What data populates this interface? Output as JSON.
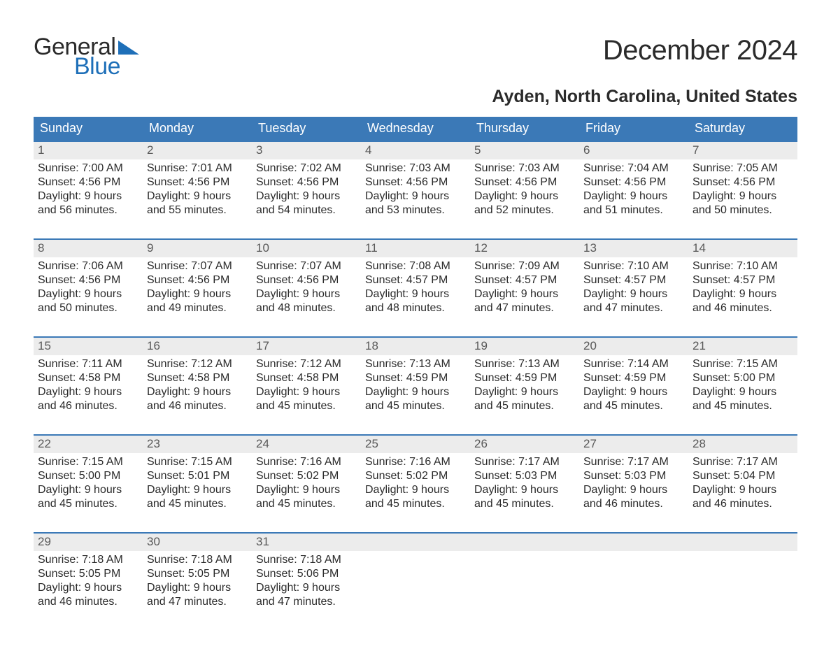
{
  "logo": {
    "word1": "General",
    "word2": "Blue",
    "word2_color": "#1e6fb8",
    "tri_color": "#1e6fb8"
  },
  "title": "December 2024",
  "location": "Ayden, North Carolina, United States",
  "colors": {
    "header_bg": "#3b79b7",
    "datebar_bg": "#ececec",
    "datebar_border": "#3b79b7",
    "text": "#2b2b2b",
    "date_text": "#595959"
  },
  "day_names": [
    "Sunday",
    "Monday",
    "Tuesday",
    "Wednesday",
    "Thursday",
    "Friday",
    "Saturday"
  ],
  "weeks": [
    [
      {
        "d": "1",
        "sr": "7:00 AM",
        "ss": "4:56 PM",
        "dl": "9 hours and 56 minutes."
      },
      {
        "d": "2",
        "sr": "7:01 AM",
        "ss": "4:56 PM",
        "dl": "9 hours and 55 minutes."
      },
      {
        "d": "3",
        "sr": "7:02 AM",
        "ss": "4:56 PM",
        "dl": "9 hours and 54 minutes."
      },
      {
        "d": "4",
        "sr": "7:03 AM",
        "ss": "4:56 PM",
        "dl": "9 hours and 53 minutes."
      },
      {
        "d": "5",
        "sr": "7:03 AM",
        "ss": "4:56 PM",
        "dl": "9 hours and 52 minutes."
      },
      {
        "d": "6",
        "sr": "7:04 AM",
        "ss": "4:56 PM",
        "dl": "9 hours and 51 minutes."
      },
      {
        "d": "7",
        "sr": "7:05 AM",
        "ss": "4:56 PM",
        "dl": "9 hours and 50 minutes."
      }
    ],
    [
      {
        "d": "8",
        "sr": "7:06 AM",
        "ss": "4:56 PM",
        "dl": "9 hours and 50 minutes."
      },
      {
        "d": "9",
        "sr": "7:07 AM",
        "ss": "4:56 PM",
        "dl": "9 hours and 49 minutes."
      },
      {
        "d": "10",
        "sr": "7:07 AM",
        "ss": "4:56 PM",
        "dl": "9 hours and 48 minutes."
      },
      {
        "d": "11",
        "sr": "7:08 AM",
        "ss": "4:57 PM",
        "dl": "9 hours and 48 minutes."
      },
      {
        "d": "12",
        "sr": "7:09 AM",
        "ss": "4:57 PM",
        "dl": "9 hours and 47 minutes."
      },
      {
        "d": "13",
        "sr": "7:10 AM",
        "ss": "4:57 PM",
        "dl": "9 hours and 47 minutes."
      },
      {
        "d": "14",
        "sr": "7:10 AM",
        "ss": "4:57 PM",
        "dl": "9 hours and 46 minutes."
      }
    ],
    [
      {
        "d": "15",
        "sr": "7:11 AM",
        "ss": "4:58 PM",
        "dl": "9 hours and 46 minutes."
      },
      {
        "d": "16",
        "sr": "7:12 AM",
        "ss": "4:58 PM",
        "dl": "9 hours and 46 minutes."
      },
      {
        "d": "17",
        "sr": "7:12 AM",
        "ss": "4:58 PM",
        "dl": "9 hours and 45 minutes."
      },
      {
        "d": "18",
        "sr": "7:13 AM",
        "ss": "4:59 PM",
        "dl": "9 hours and 45 minutes."
      },
      {
        "d": "19",
        "sr": "7:13 AM",
        "ss": "4:59 PM",
        "dl": "9 hours and 45 minutes."
      },
      {
        "d": "20",
        "sr": "7:14 AM",
        "ss": "4:59 PM",
        "dl": "9 hours and 45 minutes."
      },
      {
        "d": "21",
        "sr": "7:15 AM",
        "ss": "5:00 PM",
        "dl": "9 hours and 45 minutes."
      }
    ],
    [
      {
        "d": "22",
        "sr": "7:15 AM",
        "ss": "5:00 PM",
        "dl": "9 hours and 45 minutes."
      },
      {
        "d": "23",
        "sr": "7:15 AM",
        "ss": "5:01 PM",
        "dl": "9 hours and 45 minutes."
      },
      {
        "d": "24",
        "sr": "7:16 AM",
        "ss": "5:02 PM",
        "dl": "9 hours and 45 minutes."
      },
      {
        "d": "25",
        "sr": "7:16 AM",
        "ss": "5:02 PM",
        "dl": "9 hours and 45 minutes."
      },
      {
        "d": "26",
        "sr": "7:17 AM",
        "ss": "5:03 PM",
        "dl": "9 hours and 45 minutes."
      },
      {
        "d": "27",
        "sr": "7:17 AM",
        "ss": "5:03 PM",
        "dl": "9 hours and 46 minutes."
      },
      {
        "d": "28",
        "sr": "7:17 AM",
        "ss": "5:04 PM",
        "dl": "9 hours and 46 minutes."
      }
    ],
    [
      {
        "d": "29",
        "sr": "7:18 AM",
        "ss": "5:05 PM",
        "dl": "9 hours and 46 minutes."
      },
      {
        "d": "30",
        "sr": "7:18 AM",
        "ss": "5:05 PM",
        "dl": "9 hours and 47 minutes."
      },
      {
        "d": "31",
        "sr": "7:18 AM",
        "ss": "5:06 PM",
        "dl": "9 hours and 47 minutes."
      },
      null,
      null,
      null,
      null
    ]
  ],
  "labels": {
    "sunrise": "Sunrise: ",
    "sunset": "Sunset: ",
    "daylight": "Daylight: "
  }
}
